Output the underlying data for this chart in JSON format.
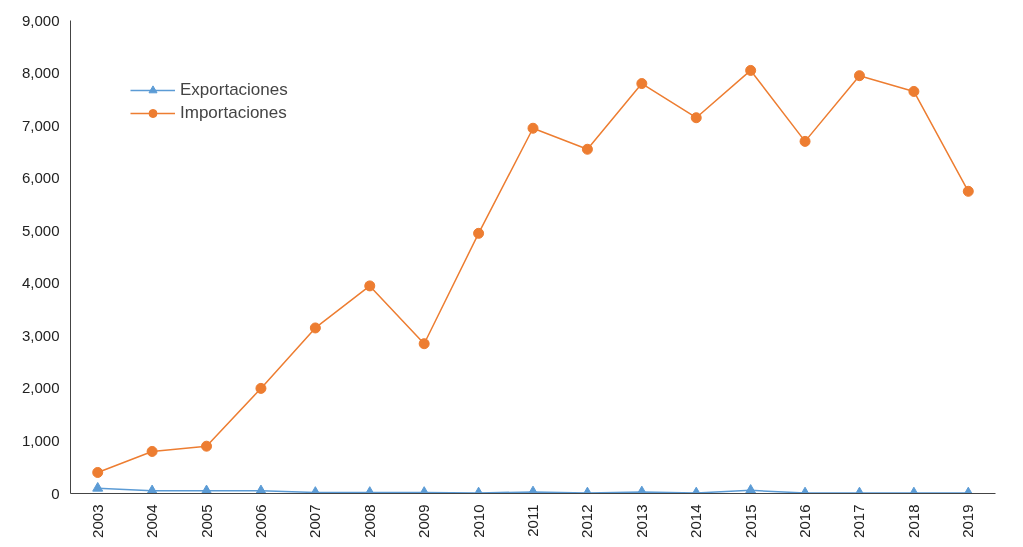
{
  "chart_data": {
    "type": "line",
    "categories": [
      "2003",
      "2004",
      "2005",
      "2006",
      "2007",
      "2008",
      "2009",
      "2010",
      "2011",
      "2012",
      "2013",
      "2014",
      "2015",
      "2016",
      "2017",
      "2018",
      "2019"
    ],
    "series": [
      {
        "name": "Exportaciones",
        "color": "#5b9bd5",
        "marker": "triangle",
        "values": [
          100,
          50,
          50,
          50,
          20,
          20,
          20,
          10,
          30,
          10,
          30,
          10,
          60,
          10,
          10,
          10,
          10
        ]
      },
      {
        "name": "Importaciones",
        "color": "#ed7d31",
        "marker": "circle",
        "values": [
          400,
          800,
          900,
          2000,
          3150,
          3950,
          2850,
          4950,
          6950,
          6550,
          7800,
          7150,
          8050,
          6700,
          7950,
          7650,
          5750
        ]
      }
    ],
    "ylim": [
      0,
      9000
    ],
    "yticks": [
      {
        "value": 0,
        "label": "0"
      },
      {
        "value": 1000,
        "label": "1,000"
      },
      {
        "value": 2000,
        "label": "2,000"
      },
      {
        "value": 3000,
        "label": "3,000"
      },
      {
        "value": 4000,
        "label": "4,000"
      },
      {
        "value": 5000,
        "label": "5,000"
      },
      {
        "value": 6000,
        "label": "6,000"
      },
      {
        "value": 7000,
        "label": "7,000"
      },
      {
        "value": 8000,
        "label": "8,000"
      },
      {
        "value": 9000,
        "label": "9,000"
      }
    ],
    "grid": false,
    "legend": "top left",
    "line_style": "solid"
  }
}
